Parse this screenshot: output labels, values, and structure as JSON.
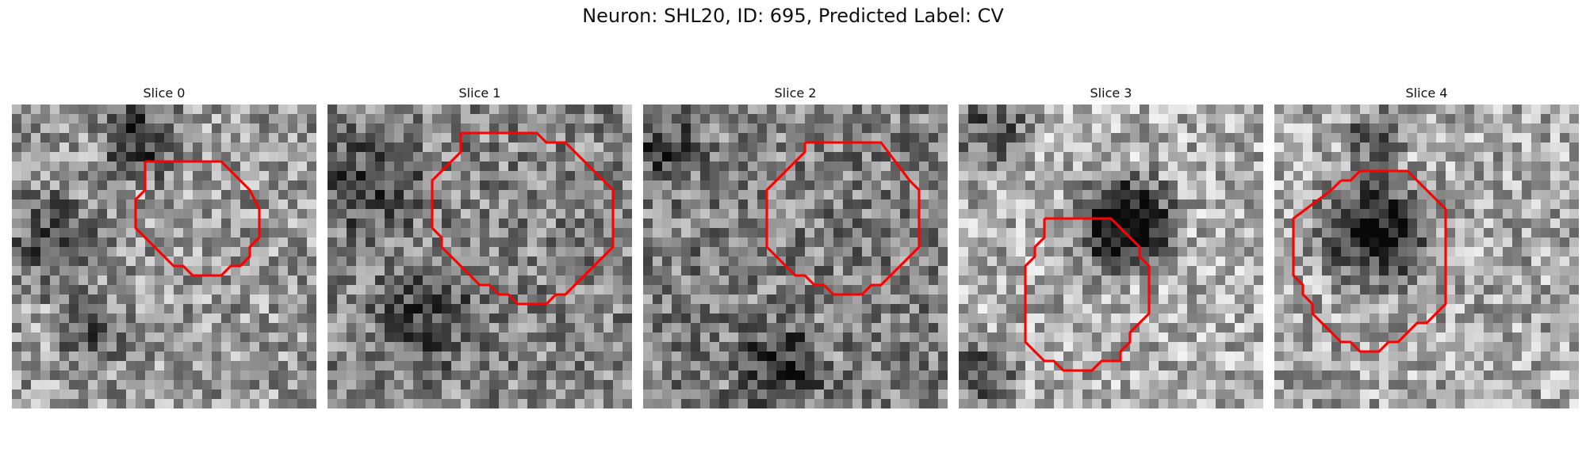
{
  "figure": {
    "title": "Neuron: SHL20, ID: 695, Predicted Label: CV",
    "contour_color": "#ff0000",
    "image_colormap": "gray"
  },
  "panels": [
    {
      "title": "Slice 0",
      "base_level": 0.6,
      "dark_regions": [
        {
          "cx": 13,
          "cy": 3,
          "r": 6,
          "strength": 0.28
        },
        {
          "cx": 4,
          "cy": 14,
          "r": 7,
          "strength": 0.25
        },
        {
          "cx": 8,
          "cy": 24,
          "r": 5,
          "strength": 0.22
        }
      ],
      "contour": [
        [
          14,
          6
        ],
        [
          22,
          6
        ],
        [
          25,
          9
        ],
        [
          26,
          11
        ],
        [
          26,
          14
        ],
        [
          25,
          15
        ],
        [
          25,
          16
        ],
        [
          24,
          17
        ],
        [
          23,
          17
        ],
        [
          22,
          18
        ],
        [
          19,
          18
        ],
        [
          18,
          17
        ],
        [
          17,
          17
        ],
        [
          16,
          16
        ],
        [
          14,
          14
        ],
        [
          13,
          13
        ],
        [
          13,
          10
        ],
        [
          14,
          9
        ],
        [
          14,
          6
        ]
      ]
    },
    {
      "title": "Slice 1",
      "base_level": 0.52,
      "dark_regions": [
        {
          "cx": 4,
          "cy": 8,
          "r": 7,
          "strength": 0.22
        },
        {
          "cx": 10,
          "cy": 22,
          "r": 8,
          "strength": 0.18
        }
      ],
      "contour": [
        [
          14,
          3
        ],
        [
          22,
          3
        ],
        [
          23,
          4
        ],
        [
          25,
          4
        ],
        [
          29,
          8
        ],
        [
          30,
          9
        ],
        [
          30,
          15
        ],
        [
          26,
          19
        ],
        [
          25,
          20
        ],
        [
          24,
          20
        ],
        [
          23,
          21
        ],
        [
          20,
          21
        ],
        [
          19,
          20
        ],
        [
          18,
          20
        ],
        [
          17,
          19
        ],
        [
          16,
          19
        ],
        [
          13,
          16
        ],
        [
          12,
          15
        ],
        [
          12,
          14
        ],
        [
          11,
          13
        ],
        [
          11,
          8
        ],
        [
          14,
          5
        ],
        [
          14,
          3
        ]
      ]
    },
    {
      "title": "Slice 2",
      "base_level": 0.5,
      "dark_regions": [
        {
          "cx": 14,
          "cy": 27,
          "r": 6,
          "strength": 0.25
        },
        {
          "cx": 2,
          "cy": 4,
          "r": 5,
          "strength": 0.2
        }
      ],
      "contour": [
        [
          17,
          4
        ],
        [
          25,
          4
        ],
        [
          28,
          8
        ],
        [
          29,
          9
        ],
        [
          29,
          15
        ],
        [
          26,
          18
        ],
        [
          25,
          19
        ],
        [
          24,
          19
        ],
        [
          23,
          20
        ],
        [
          20,
          20
        ],
        [
          19,
          19
        ],
        [
          18,
          19
        ],
        [
          17,
          18
        ],
        [
          16,
          18
        ],
        [
          13,
          15
        ],
        [
          13,
          9
        ],
        [
          17,
          5
        ],
        [
          17,
          4
        ]
      ]
    },
    {
      "title": "Slice 3",
      "base_level": 0.68,
      "dark_regions": [
        {
          "cx": 17,
          "cy": 12,
          "r": 7,
          "strength": 0.55
        },
        {
          "cx": 2,
          "cy": 28,
          "r": 5,
          "strength": 0.3
        },
        {
          "cx": 3,
          "cy": 2,
          "r": 6,
          "strength": 0.25
        }
      ],
      "contour": [
        [
          9,
          12
        ],
        [
          16,
          12
        ],
        [
          18,
          14
        ],
        [
          19,
          15
        ],
        [
          19,
          16
        ],
        [
          20,
          17
        ],
        [
          20,
          22
        ],
        [
          19,
          23
        ],
        [
          18,
          24
        ],
        [
          18,
          25
        ],
        [
          17,
          26
        ],
        [
          17,
          27
        ],
        [
          15,
          27
        ],
        [
          14,
          28
        ],
        [
          11,
          28
        ],
        [
          10,
          27
        ],
        [
          9,
          27
        ],
        [
          7,
          25
        ],
        [
          7,
          17
        ],
        [
          8,
          16
        ],
        [
          8,
          15
        ],
        [
          9,
          14
        ],
        [
          9,
          12
        ]
      ]
    },
    {
      "title": "Slice 4",
      "base_level": 0.66,
      "dark_regions": [
        {
          "cx": 10,
          "cy": 13,
          "r": 8,
          "strength": 0.42
        },
        {
          "cx": 10,
          "cy": 3,
          "r": 4,
          "strength": 0.3
        }
      ],
      "contour": [
        [
          7,
          8
        ],
        [
          8,
          8
        ],
        [
          9,
          7
        ],
        [
          14,
          7
        ],
        [
          18,
          11
        ],
        [
          18,
          21
        ],
        [
          16,
          23
        ],
        [
          15,
          23
        ],
        [
          13,
          25
        ],
        [
          12,
          25
        ],
        [
          11,
          26
        ],
        [
          9,
          26
        ],
        [
          8,
          25
        ],
        [
          7,
          25
        ],
        [
          5,
          23
        ],
        [
          4,
          22
        ],
        [
          4,
          21
        ],
        [
          3,
          20
        ],
        [
          3,
          19
        ],
        [
          2,
          18
        ],
        [
          2,
          12
        ],
        [
          6,
          9
        ],
        [
          7,
          8
        ]
      ]
    }
  ]
}
